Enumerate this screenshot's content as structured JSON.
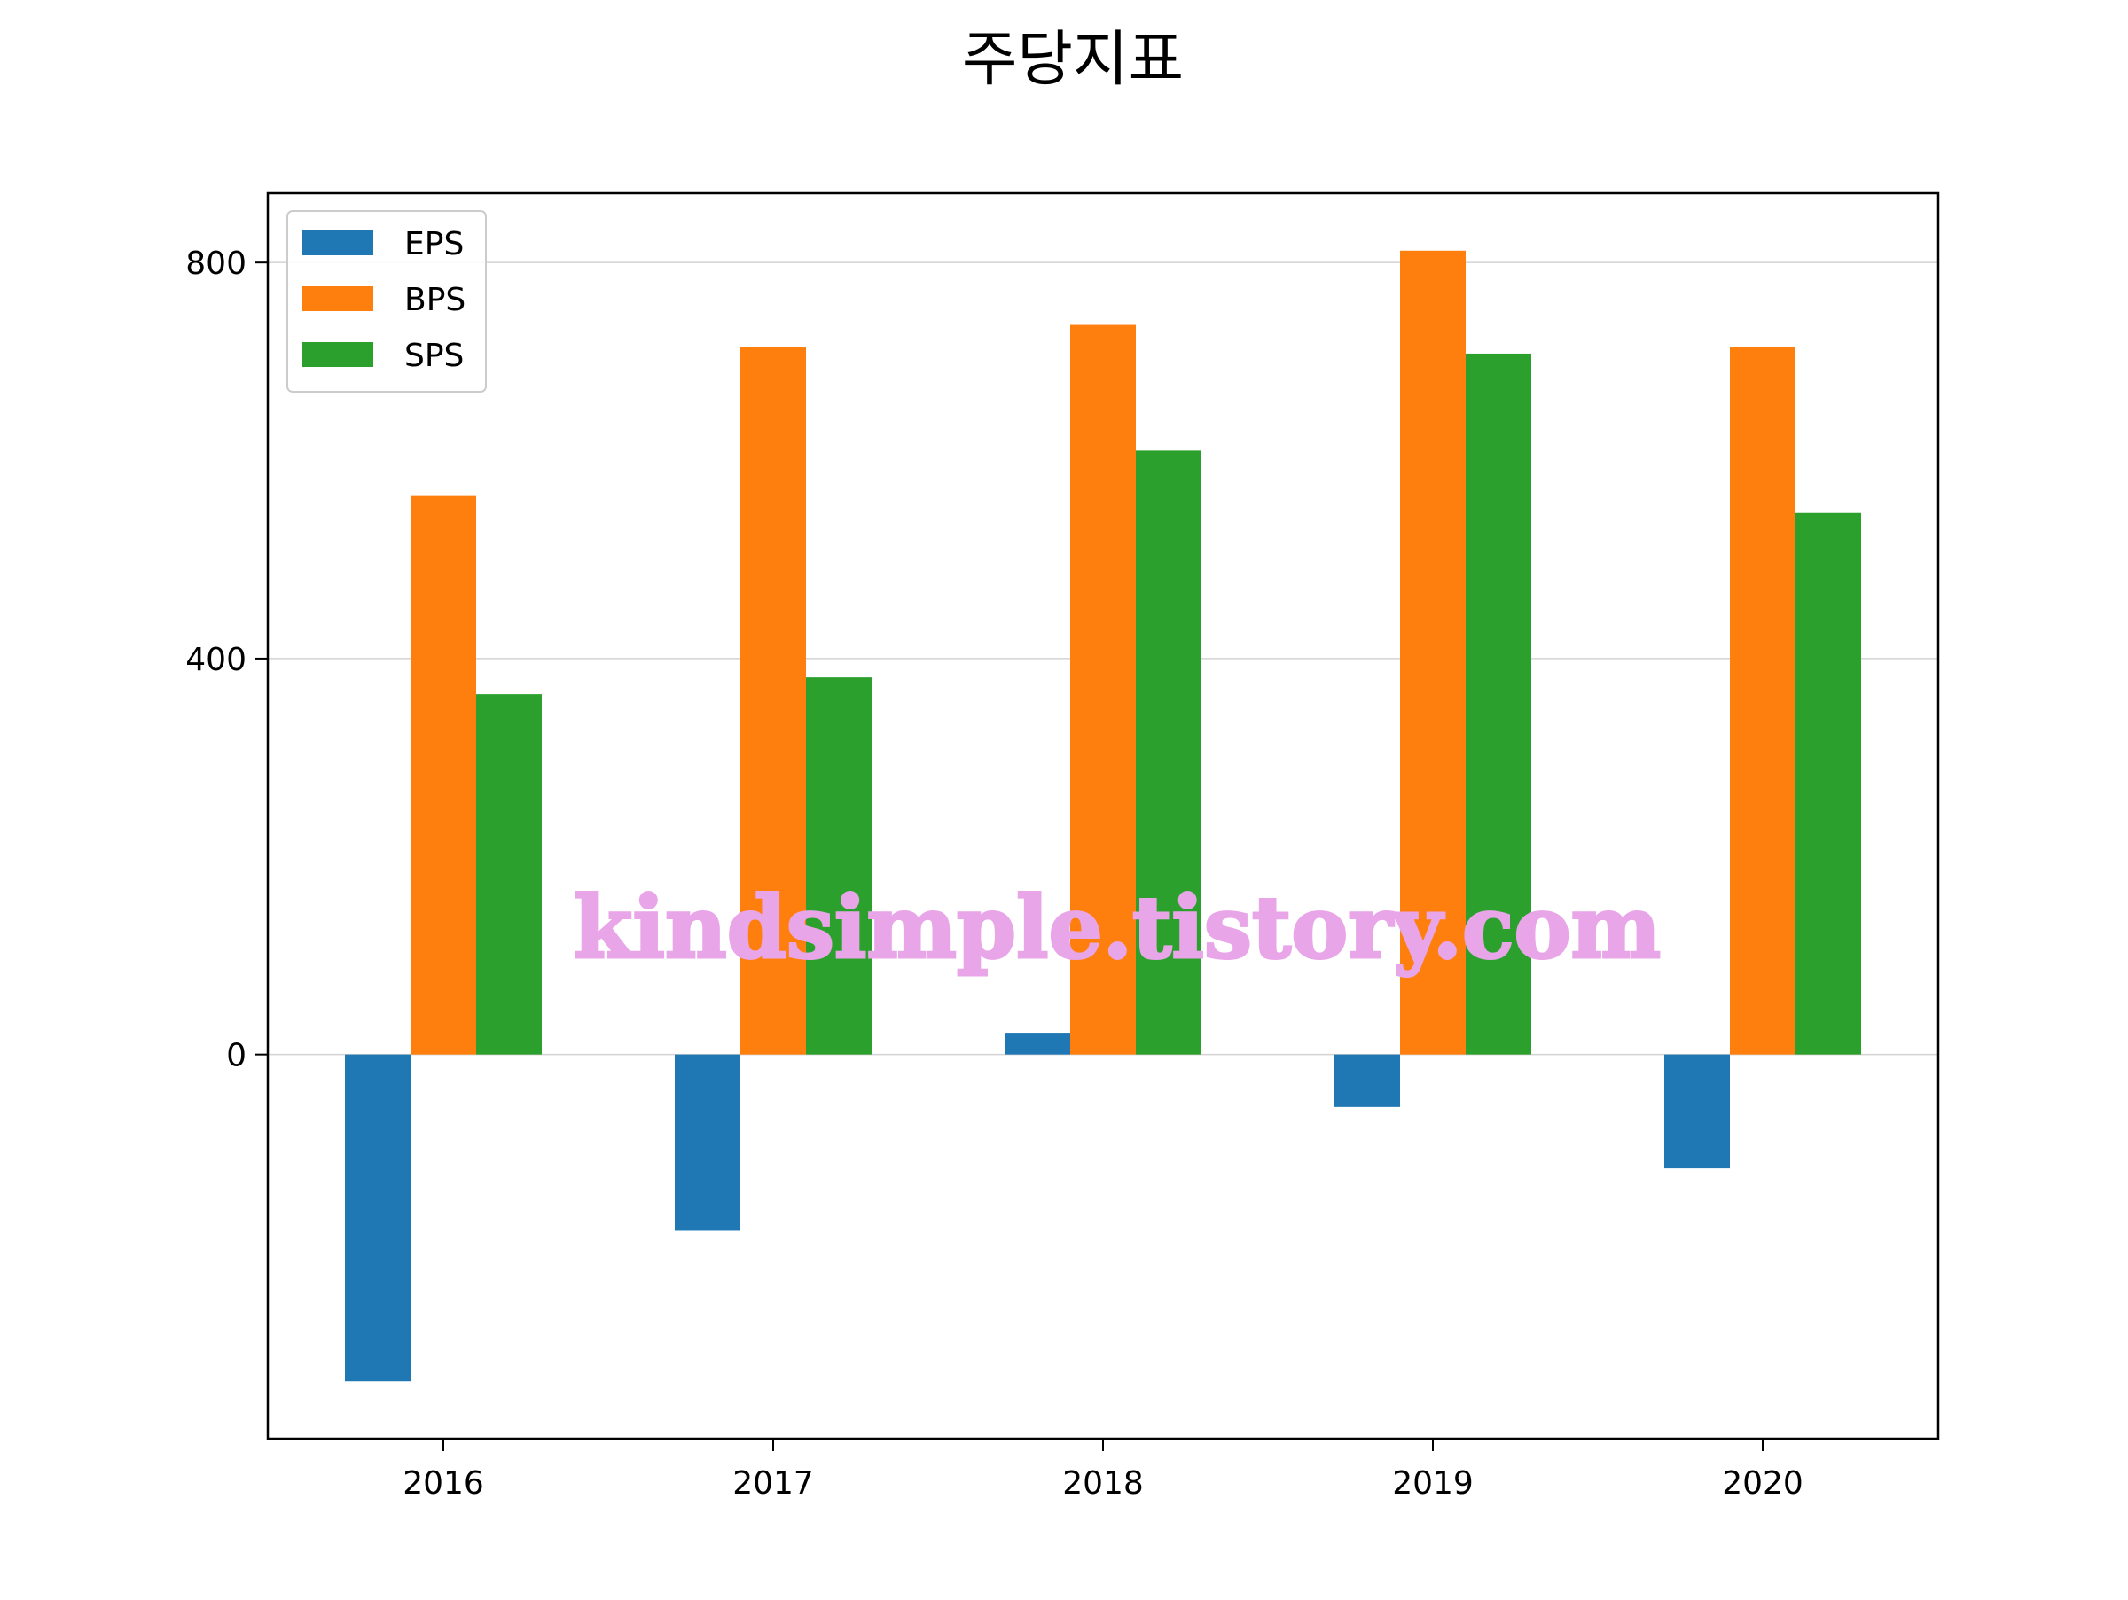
{
  "chart_data": {
    "type": "bar",
    "title": "주당지표",
    "xlabel": "",
    "ylabel": "",
    "categories": [
      "2016",
      "2017",
      "2018",
      "2019",
      "2020"
    ],
    "series": [
      {
        "name": "EPS",
        "color": "#1f77b4",
        "values": [
          -330,
          -178,
          22,
          -53,
          -115
        ]
      },
      {
        "name": "BPS",
        "color": "#ff7f0e",
        "values": [
          565,
          715,
          737,
          812,
          715
        ]
      },
      {
        "name": "SPS",
        "color": "#2ca02c",
        "values": [
          364,
          381,
          610,
          708,
          547
        ]
      }
    ],
    "ylim": [
      -388,
      870
    ],
    "yticks": [
      0,
      400,
      800
    ],
    "grid": "y-major",
    "legend": "top-left"
  },
  "watermark": "kindsimple.tistory.com"
}
